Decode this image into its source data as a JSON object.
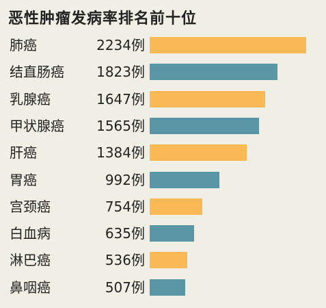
{
  "chart_data": {
    "type": "bar",
    "orientation": "horizontal",
    "title": "恶性肿瘤发病率排名前十位",
    "unit": "例",
    "categories": [
      "肺癌",
      "结直肠癌",
      "乳腺癌",
      "甲状腺癌",
      "肝癌",
      "胃癌",
      "宫颈癌",
      "白血病",
      "淋巴癌",
      "鼻咽癌"
    ],
    "values": [
      2234,
      1823,
      1647,
      1565,
      1384,
      992,
      754,
      635,
      536,
      507
    ],
    "bar_colors": [
      "#fbb955",
      "#5a97a6"
    ],
    "xlim": [
      0,
      2234
    ],
    "grid": false,
    "legend": "none"
  }
}
